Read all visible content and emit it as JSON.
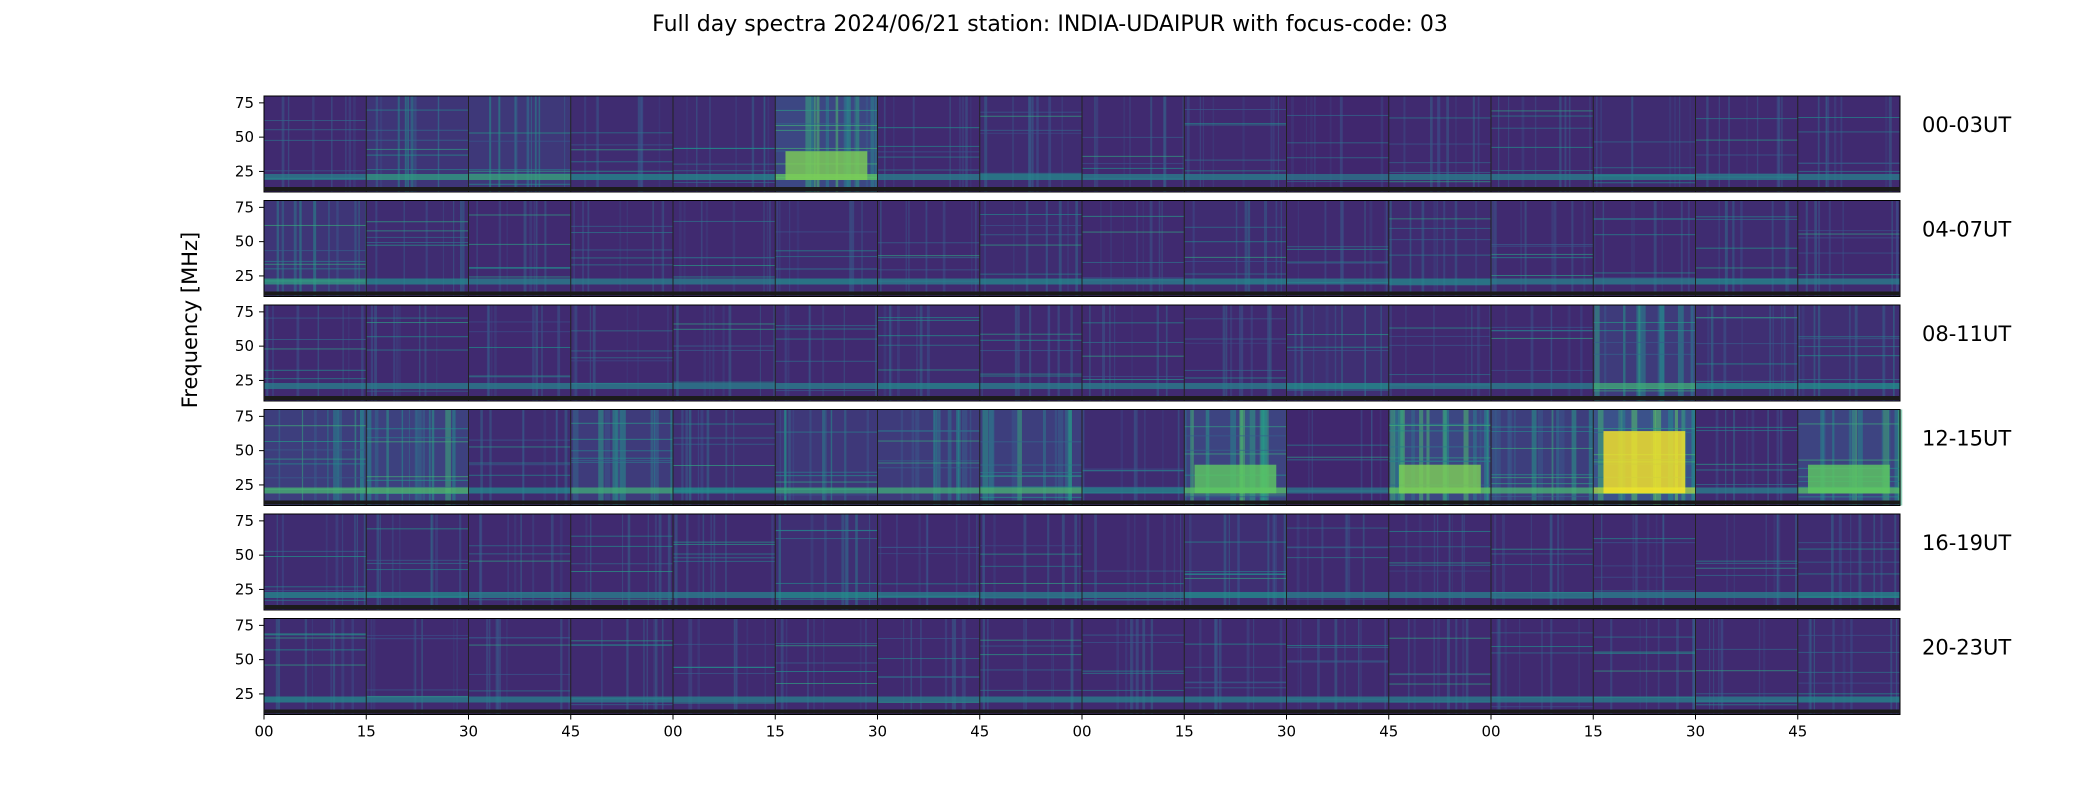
{
  "chart_data": {
    "type": "heatmap",
    "title": "Full day spectra 2024/06/21 station: INDIA-UDAIPUR with focus-code: 03",
    "ylabel": "Frequency [MHz]",
    "xlabel": "",
    "y_ticks": [
      "75",
      "50",
      "25"
    ],
    "y_tick_values": [
      75,
      50,
      25
    ],
    "ylim": [
      10,
      80
    ],
    "x_ticks": [
      "00",
      "15",
      "30",
      "45",
      "00",
      "15",
      "30",
      "45",
      "00",
      "15",
      "30",
      "45",
      "00",
      "15",
      "30",
      "45"
    ],
    "rows": [
      {
        "label": "00-03UT",
        "intensity": [
          0.25,
          0.45,
          0.5,
          0.3,
          0.3,
          0.75,
          0.25,
          0.3,
          0.25,
          0.25,
          0.2,
          0.25,
          0.25,
          0.3,
          0.25,
          0.25
        ]
      },
      {
        "label": "04-07UT",
        "intensity": [
          0.45,
          0.3,
          0.25,
          0.25,
          0.25,
          0.3,
          0.25,
          0.3,
          0.25,
          0.3,
          0.25,
          0.3,
          0.25,
          0.25,
          0.3,
          0.25
        ]
      },
      {
        "label": "08-11UT",
        "intensity": [
          0.25,
          0.25,
          0.25,
          0.25,
          0.25,
          0.25,
          0.3,
          0.25,
          0.25,
          0.25,
          0.35,
          0.25,
          0.25,
          0.55,
          0.35,
          0.35
        ]
      },
      {
        "label": "12-15UT",
        "intensity": [
          0.6,
          0.65,
          0.3,
          0.55,
          0.35,
          0.5,
          0.55,
          0.6,
          0.3,
          0.7,
          0.2,
          0.75,
          0.6,
          0.95,
          0.25,
          0.7
        ]
      },
      {
        "label": "16-19UT",
        "intensity": [
          0.3,
          0.3,
          0.25,
          0.25,
          0.25,
          0.35,
          0.25,
          0.25,
          0.25,
          0.35,
          0.25,
          0.25,
          0.25,
          0.25,
          0.25,
          0.3
        ]
      },
      {
        "label": "20-23UT",
        "intensity": [
          0.3,
          0.25,
          0.25,
          0.25,
          0.25,
          0.25,
          0.25,
          0.25,
          0.25,
          0.25,
          0.25,
          0.25,
          0.25,
          0.25,
          0.25,
          0.3
        ]
      }
    ]
  }
}
